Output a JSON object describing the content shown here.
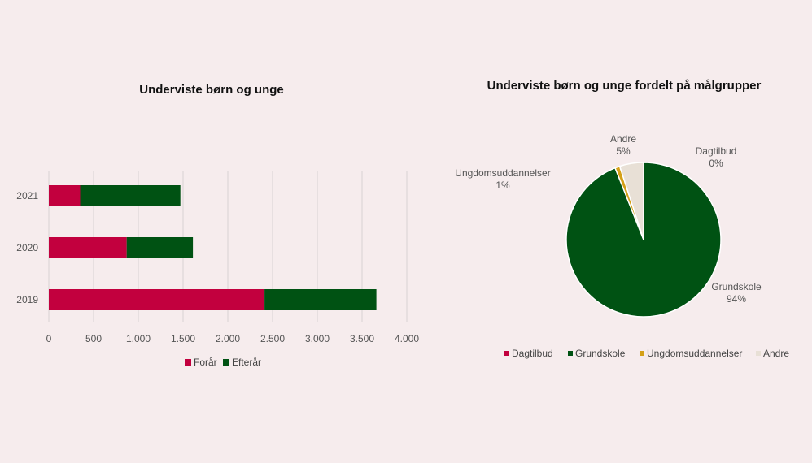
{
  "chart_data": [
    {
      "type": "bar",
      "orientation": "horizontal",
      "stacked": true,
      "title": "Underviste børn og unge",
      "categories": [
        "2021",
        "2020",
        "2019"
      ],
      "series": [
        {
          "name": "Forår",
          "values": [
            350,
            870,
            2410
          ],
          "color": "#c2003e"
        },
        {
          "name": "Efterår",
          "values": [
            1120,
            740,
            1250
          ],
          "color": "#005213"
        }
      ],
      "xlim": [
        0,
        4000
      ],
      "xticks": [
        0,
        500,
        1000,
        1500,
        2000,
        2500,
        3000,
        3500,
        4000
      ],
      "xtick_labels": [
        "0",
        "500",
        "1.000",
        "1.500",
        "2.000",
        "2.500",
        "3.000",
        "3.500",
        "4.000"
      ],
      "grid": true,
      "legend_position": "bottom"
    },
    {
      "type": "pie",
      "title": "Underviste børn og unge fordelt på målgrupper",
      "slices": [
        {
          "name": "Dagtilbud",
          "value": 0,
          "pct_label": "0%",
          "color": "#c2003e"
        },
        {
          "name": "Grundskole",
          "value": 94,
          "pct_label": "94%",
          "color": "#005213"
        },
        {
          "name": "Ungdomsuddannelser",
          "value": 1,
          "pct_label": "1%",
          "color": "#d4a017"
        },
        {
          "name": "Andre",
          "value": 5,
          "pct_label": "5%",
          "color": "#e8e0d6"
        }
      ],
      "legend_position": "bottom"
    }
  ]
}
